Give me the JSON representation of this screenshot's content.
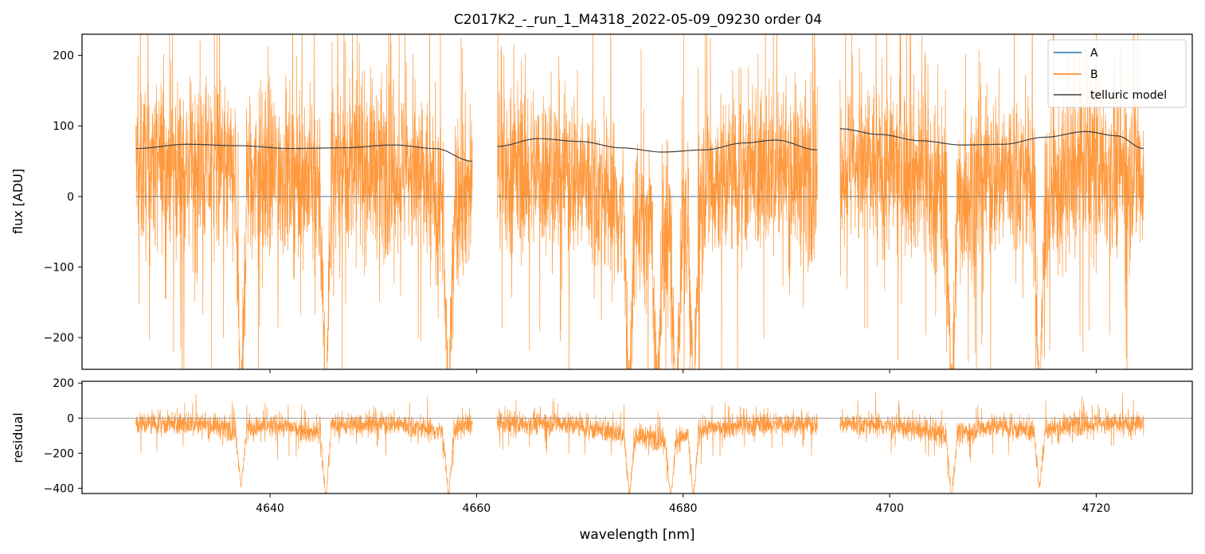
{
  "title": "C2017K2_-_run_1_M4318_2022-05-09_09230  order 04",
  "colors": {
    "A": "#1f77b4",
    "B": "#ff7f0e",
    "telluric": "#404040",
    "zero": "#808080"
  },
  "chart_data": [
    {
      "type": "line",
      "panel": "flux",
      "xlabel": "",
      "ylabel": "flux [ADU]",
      "xlim": [
        4621.8,
        4729.3
      ],
      "ylim": [
        -245,
        230
      ],
      "yticks": [
        -200,
        -100,
        0,
        100,
        200
      ],
      "yticklabels": [
        "−200",
        "−100",
        "0",
        "100",
        "200"
      ],
      "legend": {
        "position": "top-right",
        "entries": [
          "A",
          "B",
          "telluric model"
        ]
      },
      "segments": [
        [
          4627.0,
          4659.6
        ],
        [
          4662.0,
          4693.0
        ],
        [
          4695.2,
          4724.6
        ]
      ],
      "series": [
        {
          "name": "A",
          "segments_data": [
            {
              "x": [
                4627.0,
                4659.6
              ],
              "y": [
                0,
                0
              ]
            },
            {
              "x": [
                4662.0,
                4693.0
              ],
              "y": [
                0,
                0
              ]
            },
            {
              "x": [
                4695.2,
                4724.6
              ],
              "y": [
                0,
                0
              ]
            }
          ]
        },
        {
          "name": "B",
          "noise_amplitude": 100,
          "segments_data": [
            {
              "x": [
                4627.0,
                4630.0,
                4634.0,
                4637.0,
                4641.0,
                4645.0,
                4646.0,
                4650.0,
                4654.0,
                4657.0,
                4659.6
              ],
              "y": [
                40,
                45,
                42,
                25,
                38,
                20,
                40,
                45,
                35,
                -10,
                20
              ]
            },
            {
              "x": [
                4662.0,
                4666.0,
                4670.0,
                4674.0,
                4677.0,
                4679.0,
                4682.0,
                4686.0,
                4690.0,
                4693.0
              ],
              "y": [
                35,
                40,
                30,
                -20,
                -40,
                -60,
                20,
                35,
                40,
                30
              ]
            },
            {
              "x": [
                4695.2,
                4699.0,
                4703.0,
                4706.0,
                4709.0,
                4713.0,
                4715.0,
                4719.0,
                4722.0,
                4724.6
              ],
              "y": [
                50,
                40,
                35,
                -15,
                30,
                35,
                -10,
                45,
                40,
                35
              ]
            }
          ],
          "dips": [
            {
              "x": 4637.2,
              "y": -245
            },
            {
              "x": 4645.4,
              "y": -245
            },
            {
              "x": 4657.3,
              "y": -245
            },
            {
              "x": 4674.8,
              "y": -245
            },
            {
              "x": 4677.5,
              "y": -245
            },
            {
              "x": 4679.3,
              "y": -245
            },
            {
              "x": 4681.0,
              "y": -245
            },
            {
              "x": 4706.0,
              "y": -245
            },
            {
              "x": 4714.5,
              "y": -245
            }
          ]
        },
        {
          "name": "telluric model",
          "segments_data": [
            {
              "x": [
                4627.0,
                4632.0,
                4637.0,
                4642.0,
                4647.0,
                4652.0,
                4656.0,
                4659.6
              ],
              "y": [
                68,
                74,
                72,
                68,
                69,
                73,
                68,
                50
              ]
            },
            {
              "x": [
                4662.0,
                4666.0,
                4670.0,
                4674.0,
                4678.0,
                4682.0,
                4686.0,
                4689.0,
                4693.0
              ],
              "y": [
                71,
                82,
                78,
                69,
                63,
                66,
                76,
                80,
                66
              ]
            },
            {
              "x": [
                4695.2,
                4699.0,
                4703.0,
                4707.0,
                4711.0,
                4715.0,
                4719.0,
                4722.0,
                4724.6
              ],
              "y": [
                96,
                88,
                79,
                73,
                74,
                84,
                92,
                86,
                68
              ]
            }
          ]
        }
      ]
    },
    {
      "type": "line",
      "panel": "residual",
      "xlabel": "wavelength [nm]",
      "ylabel": "residual",
      "xlim": [
        4621.8,
        4729.3
      ],
      "ylim": [
        -430,
        210
      ],
      "xticks": [
        4640,
        4660,
        4680,
        4700,
        4720
      ],
      "xticklabels": [
        "4640",
        "4660",
        "4680",
        "4700",
        "4720"
      ],
      "yticks": [
        -400,
        -200,
        0,
        200
      ],
      "yticklabels": [
        "−400",
        "−200",
        "0",
        "200"
      ],
      "series": [
        {
          "name": "B",
          "noise_amplitude": 55,
          "segments_data": [
            {
              "x": [
                4627.0,
                4634.0,
                4637.0,
                4641.0,
                4645.0,
                4646.0,
                4652.0,
                4657.0,
                4659.6
              ],
              "y": [
                -30,
                -35,
                -70,
                -40,
                -90,
                -40,
                -30,
                -80,
                -30
              ]
            },
            {
              "x": [
                4662.0,
                4668.0,
                4674.0,
                4677.0,
                4679.0,
                4682.0,
                4688.0,
                4693.0
              ],
              "y": [
                -35,
                -25,
                -90,
                -110,
                -130,
                -60,
                -30,
                -35
              ]
            },
            {
              "x": [
                4695.2,
                4700.0,
                4706.0,
                4710.0,
                4714.5,
                4718.0,
                4724.6
              ],
              "y": [
                -30,
                -40,
                -100,
                -40,
                -80,
                -30,
                -35
              ]
            }
          ],
          "dips": [
            {
              "x": 4637.2,
              "y": -360
            },
            {
              "x": 4645.4,
              "y": -430
            },
            {
              "x": 4657.3,
              "y": -430
            },
            {
              "x": 4674.8,
              "y": -430
            },
            {
              "x": 4678.8,
              "y": -430
            },
            {
              "x": 4681.0,
              "y": -430
            },
            {
              "x": 4706.0,
              "y": -430
            },
            {
              "x": 4714.5,
              "y": -380
            }
          ]
        }
      ]
    }
  ]
}
